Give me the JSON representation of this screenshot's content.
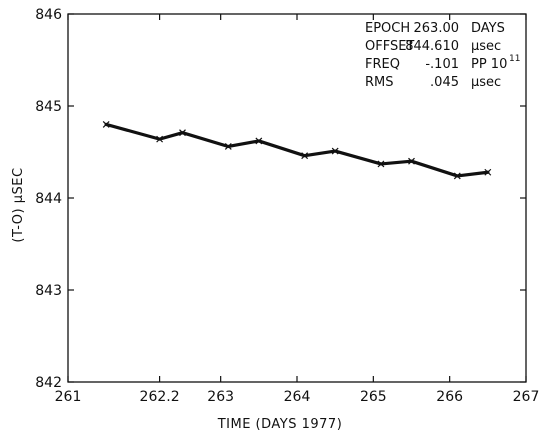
{
  "chart_data": {
    "type": "line",
    "xlabel": "TIME (DAYS 1977)",
    "ylabel": "(T-O) μSEC",
    "xlim": [
      261,
      267
    ],
    "ylim": [
      842,
      846
    ],
    "x_ticks": [
      261,
      262.2,
      263,
      264,
      265,
      266,
      267
    ],
    "x_tick_labels": [
      "261",
      "262.2",
      "263",
      "264",
      "265",
      "266",
      "267"
    ],
    "y_ticks": [
      842,
      843,
      844,
      845,
      846
    ],
    "y_tick_labels": [
      "842",
      "843",
      "844",
      "845",
      "846"
    ],
    "grid": false,
    "series": [
      {
        "x": [
          261.5,
          262.2,
          262.5,
          263.1,
          263.5,
          264.1,
          264.5,
          265.1,
          265.5,
          266.1,
          266.5
        ],
        "y": [
          844.8,
          844.64,
          844.71,
          844.56,
          844.62,
          844.46,
          844.51,
          844.37,
          844.4,
          844.24,
          844.28
        ]
      }
    ],
    "annotation": {
      "rows": [
        {
          "label": "EPOCH",
          "value": "263.00",
          "unit": "DAYS"
        },
        {
          "label": "OFFSET",
          "value": "844.610",
          "unit": "μsec"
        },
        {
          "label": "FREQ",
          "value": "-.101",
          "unit": "PP 10",
          "unit_sup": "11"
        },
        {
          "label": "RMS",
          "value": ".045",
          "unit": "μsec"
        }
      ]
    }
  }
}
